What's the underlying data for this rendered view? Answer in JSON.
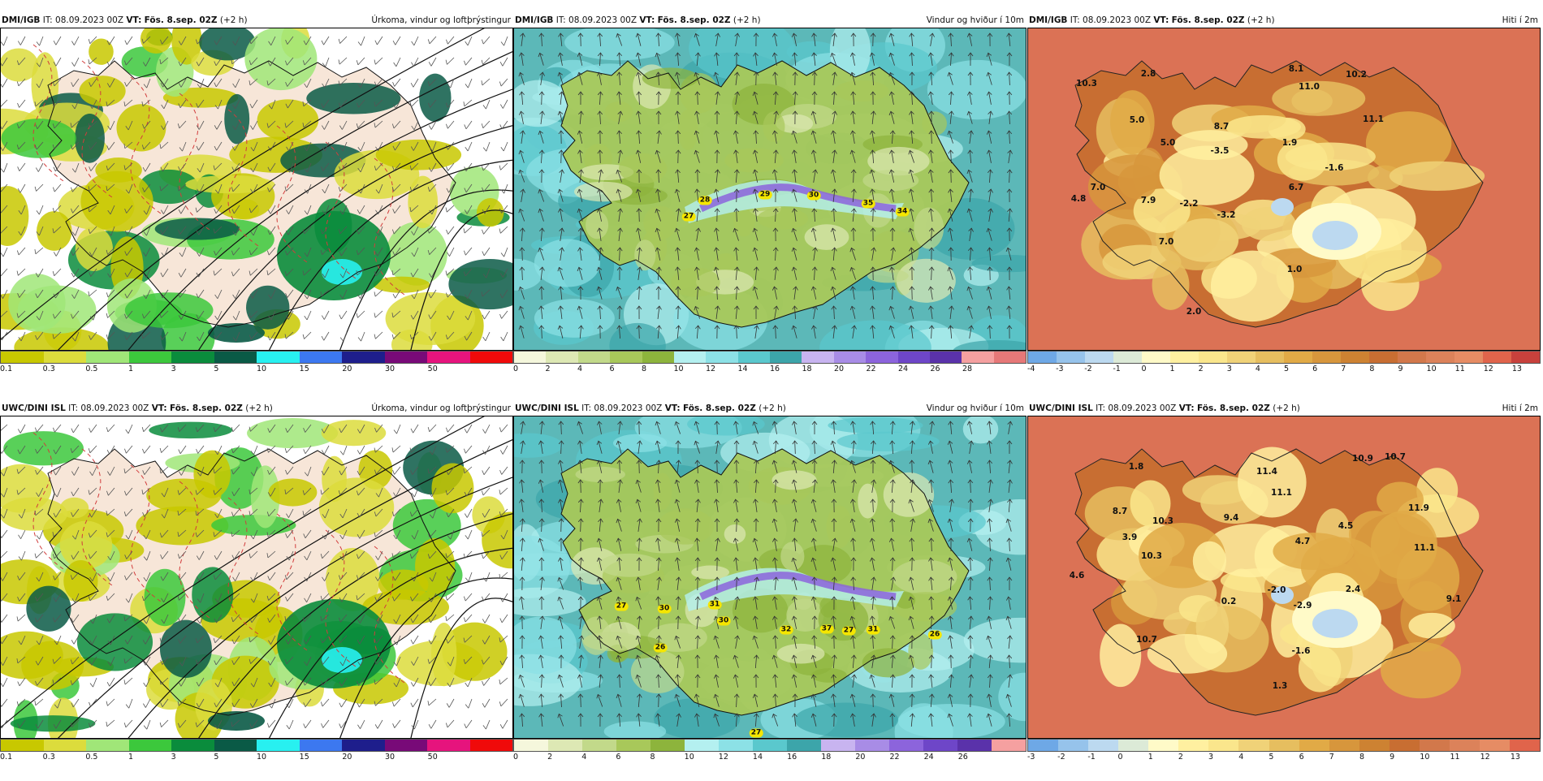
{
  "rows": [
    {
      "panels": [
        {
          "kind": "precip",
          "model": "DMI/IGB",
          "it": "IT: 08.09.2023 00Z",
          "vt_label": "VT:",
          "vt": "Fös. 8.sep. 02Z",
          "lead": "(+2 h)",
          "title": "Úrkoma, vindur og loftþrýstingur",
          "ticks": [
            "0.1",
            "0.3",
            "0.5",
            "1",
            "3",
            "5",
            "10",
            "15",
            "20",
            "30",
            "50"
          ]
        },
        {
          "kind": "wind",
          "model": "DMI/IGB",
          "it": "IT: 08.09.2023 00Z",
          "vt_label": "VT:",
          "vt": "Fös. 8.sep. 02Z",
          "lead": "(+2 h)",
          "title": "Vindur og hviður í 10m",
          "ticks": [
            "0",
            "2",
            "4",
            "6",
            "8",
            "10",
            "12",
            "14",
            "16",
            "18",
            "20",
            "22",
            "24",
            "26",
            "28"
          ],
          "gusts": [
            {
              "v": "27"
            },
            {
              "v": "28"
            },
            {
              "v": "29"
            },
            {
              "v": "30"
            },
            {
              "v": "35"
            },
            {
              "v": "34"
            }
          ]
        },
        {
          "kind": "temp",
          "model": "DMI/IGB",
          "it": "IT: 08.09.2023 00Z",
          "vt_label": "VT:",
          "vt": "Fös. 8.sep. 02Z",
          "lead": "(+2 h)",
          "title": "Hiti í 2m",
          "ticks": [
            "-4",
            "-3",
            "-2",
            "-1",
            "0",
            "1",
            "2",
            "3",
            "4",
            "5",
            "6",
            "7",
            "8",
            "9",
            "10",
            "11",
            "12",
            "13"
          ],
          "temps": [
            "10.3",
            "2.8",
            "8.1",
            "10.2",
            "11.0",
            "5.0",
            "5.0",
            "8.7",
            "11.1",
            "-3.5",
            "1.9",
            "-1.6",
            "6.7",
            "7.0",
            "7.9",
            "-2.2",
            "-3.2",
            "4.8",
            "7.0",
            "1.0",
            "2.0"
          ]
        }
      ]
    },
    {
      "panels": [
        {
          "kind": "precip",
          "model": "UWC/DINI ISL",
          "it": "IT: 08.09.2023 00Z",
          "vt_label": "VT:",
          "vt": "Fös. 8.sep. 02Z",
          "lead": "(+2 h)",
          "title": "Úrkoma, vindur og loftþrýstingur",
          "ticks": [
            "0.1",
            "0.3",
            "0.5",
            "1",
            "3",
            "5",
            "10",
            "15",
            "20",
            "30",
            "50"
          ]
        },
        {
          "kind": "wind",
          "model": "UWC/DINI ISL",
          "it": "IT: 08.09.2023 00Z",
          "vt_label": "VT:",
          "vt": "Fös. 8.sep. 02Z",
          "lead": "(+2 h)",
          "title": "Vindur og hviður í 10m",
          "ticks": [
            "0",
            "2",
            "4",
            "6",
            "8",
            "10",
            "12",
            "14",
            "16",
            "18",
            "20",
            "22",
            "24",
            "26"
          ],
          "gusts": [
            {
              "v": "27"
            },
            {
              "v": "30"
            },
            {
              "v": "31"
            },
            {
              "v": "30"
            },
            {
              "v": "26"
            },
            {
              "v": "32"
            },
            {
              "v": "37"
            },
            {
              "v": "27"
            },
            {
              "v": "31"
            },
            {
              "v": "26"
            },
            {
              "v": "27"
            }
          ]
        },
        {
          "kind": "temp",
          "model": "UWC/DINI ISL",
          "it": "IT: 08.09.2023 00Z",
          "vt_label": "VT:",
          "vt": "Fös. 8.sep. 02Z",
          "lead": "(+2 h)",
          "title": "Hiti í 2m",
          "ticks": [
            "-3",
            "-2",
            "-1",
            "0",
            "1",
            "2",
            "3",
            "4",
            "5",
            "6",
            "7",
            "8",
            "9",
            "10",
            "11",
            "12",
            "13"
          ],
          "temps": [
            "1.8",
            "11.4",
            "10.9",
            "10.7",
            "11.1",
            "8.7",
            "10.3",
            "9.4",
            "11.9",
            "3.9",
            "4.7",
            "4.5",
            "10.3",
            "11.1",
            "4.6",
            "0.2",
            "-2.0",
            "-2.9",
            "2.4",
            "9.1",
            "10.7",
            "-1.6",
            "1.3"
          ]
        }
      ]
    }
  ],
  "colors": {
    "precip": [
      "#c8c800",
      "#dcdc3c",
      "#a0e678",
      "#3cc83c",
      "#0a8c3c",
      "#0a5a46",
      "#28f0f0",
      "#3c78f0",
      "#1e1e8c",
      "#780a78",
      "#e6147d",
      "#f00a0a"
    ],
    "wind": [
      "#f5f7dc",
      "#dde8b4",
      "#c2d98a",
      "#a8c85a",
      "#8db43c",
      "#b4f0f0",
      "#8ce1e6",
      "#5ac8cd",
      "#3ca5aa",
      "#c8b4f0",
      "#a88ce6",
      "#8c64dc",
      "#6e46c8",
      "#5a32aa",
      "#f5a0a0",
      "#e67878",
      "#d25050"
    ],
    "temp": [
      "#6ea8e6",
      "#96c3eb",
      "#bcd9f0",
      "#dcead7",
      "#fffac8",
      "#fff0a0",
      "#fae68c",
      "#f0d278",
      "#e6be5f",
      "#e1aa46",
      "#d7963c",
      "#cd8232",
      "#c86e32",
      "#d2784b",
      "#dc825a",
      "#e68c64",
      "#e0644b",
      "#c8413c"
    ],
    "land_precip": "#f7e6d8",
    "sea_wind": "#5cb8b8",
    "sea_temp": "#db7255"
  }
}
